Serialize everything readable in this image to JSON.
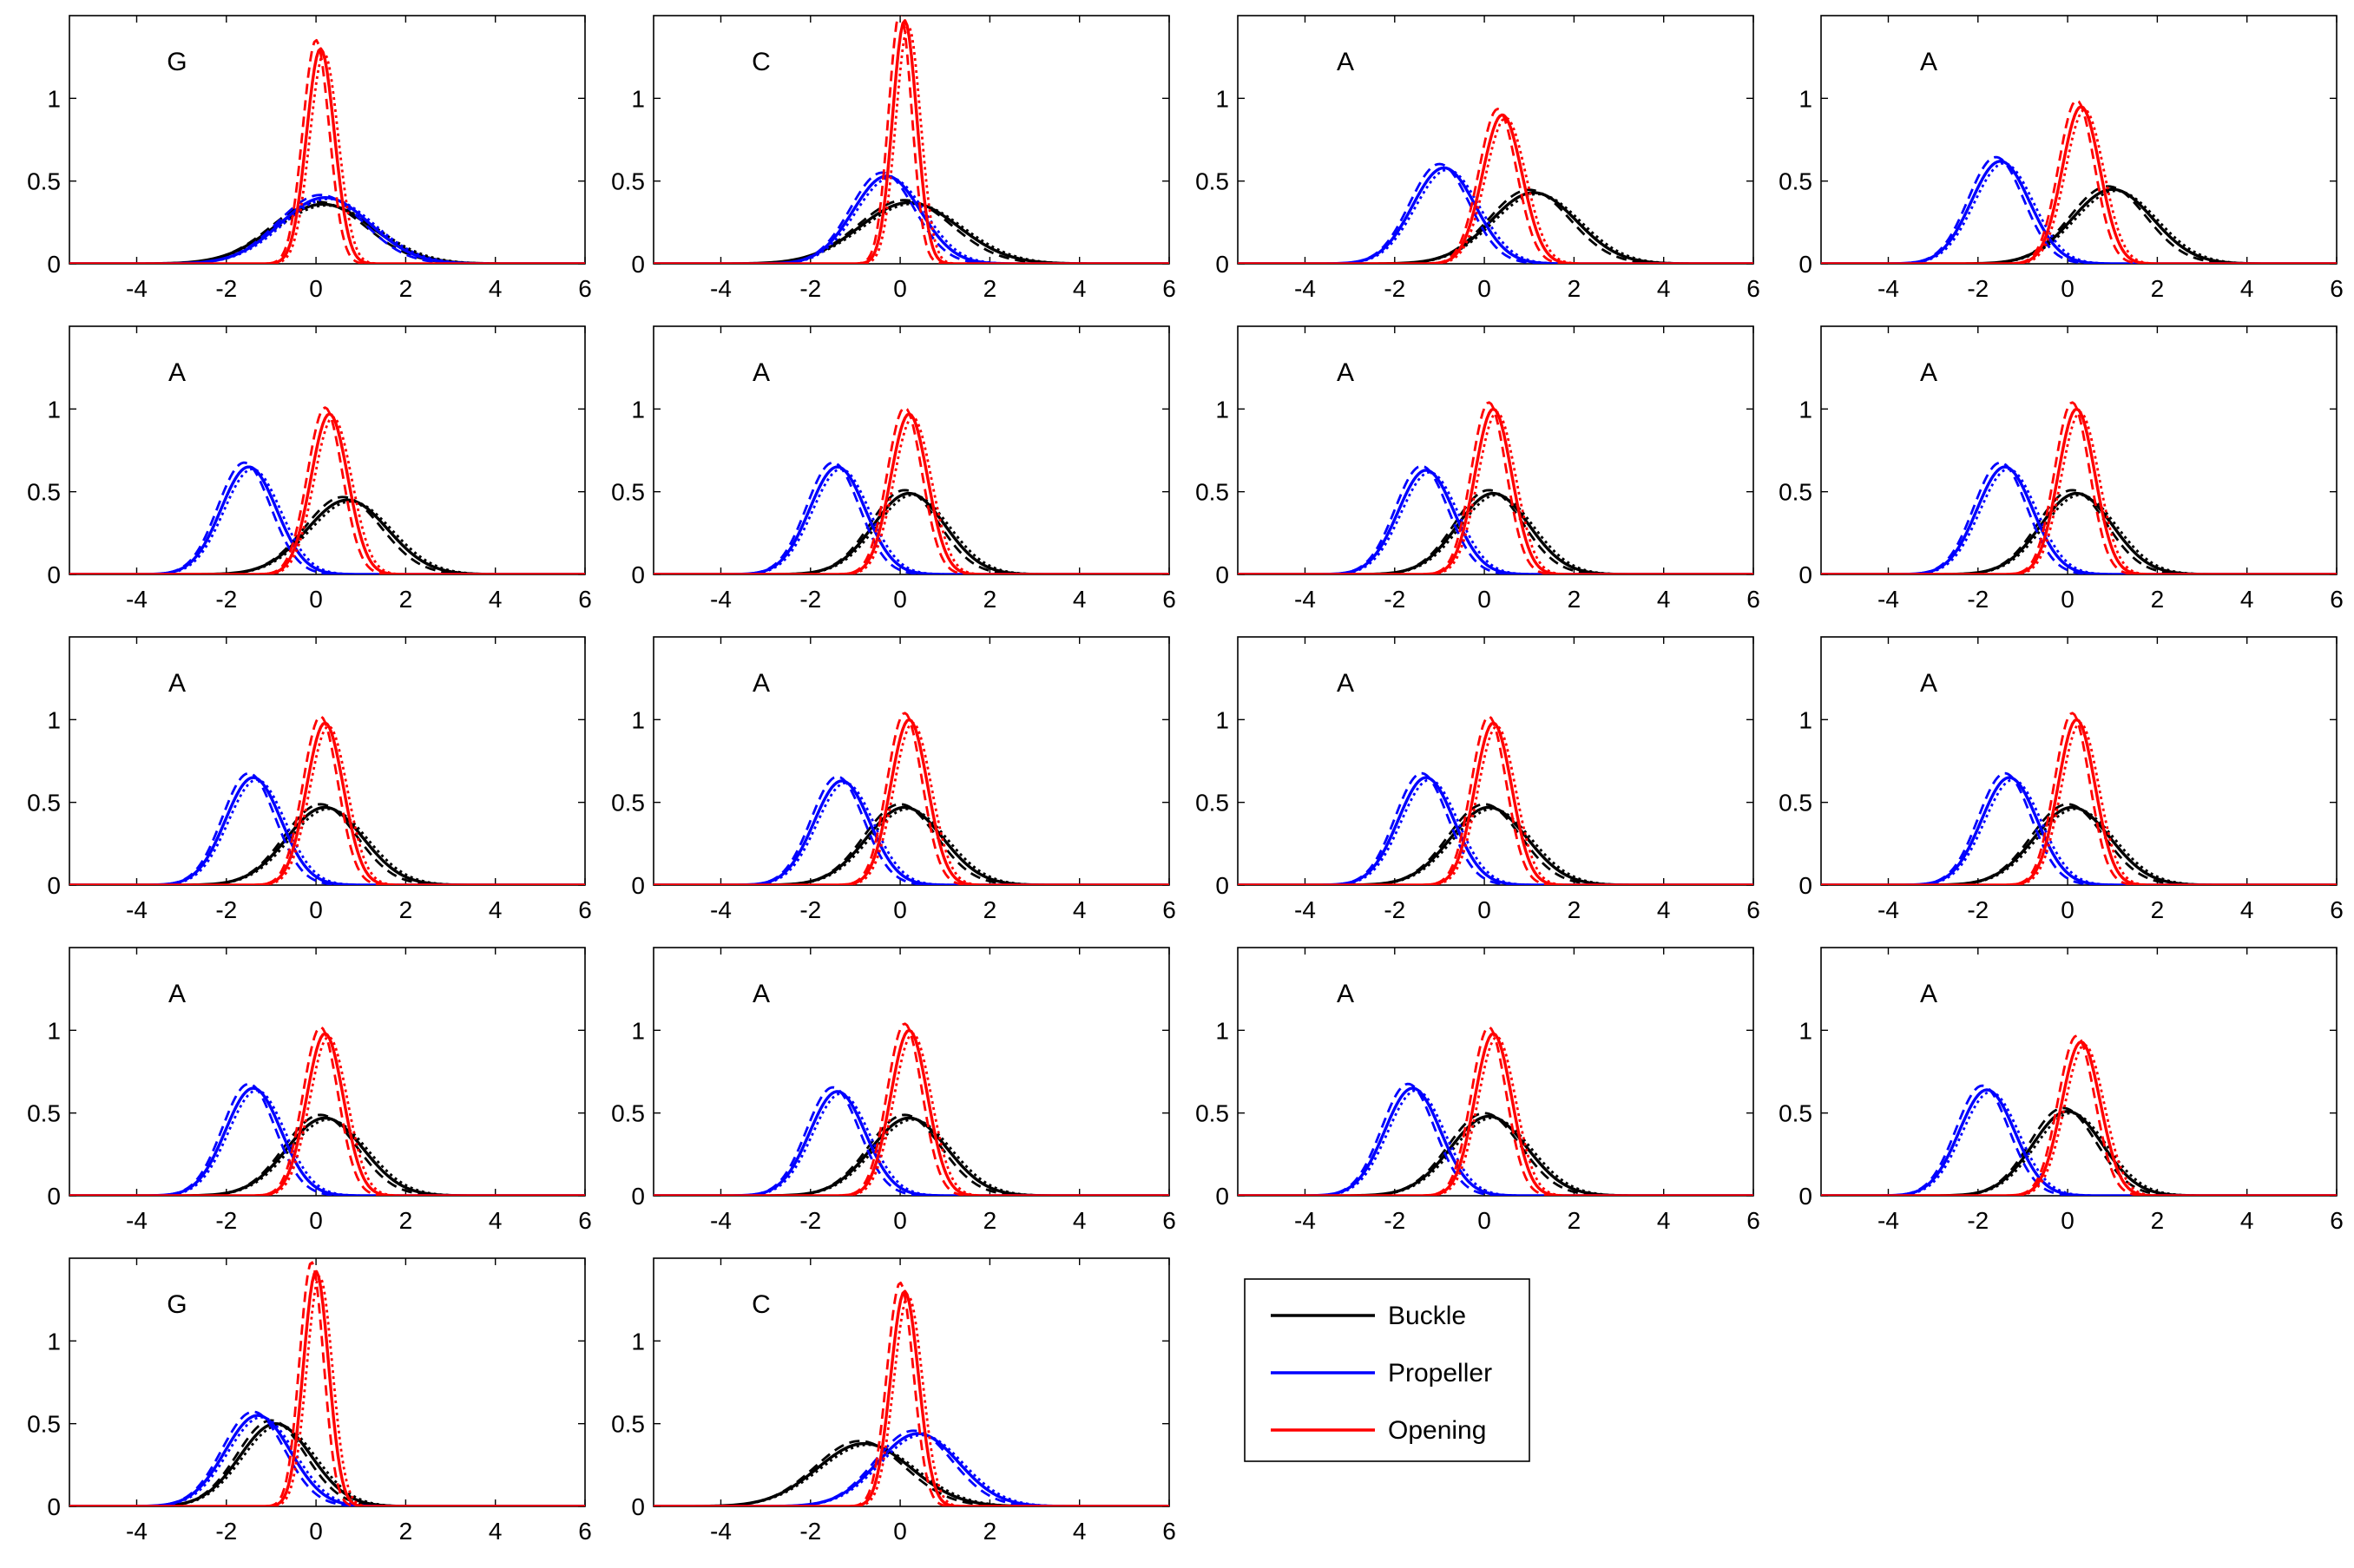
{
  "chart_data": {
    "type": "line",
    "layout": "grid 5 rows x 4 columns",
    "xlim": [
      -5.5,
      6
    ],
    "ylim": [
      0,
      1.5
    ],
    "xticks": [
      -4,
      -2,
      0,
      2,
      4,
      6
    ],
    "yticks": [
      0,
      0.5,
      1
    ],
    "ytick_labels": [
      "0",
      "0.5",
      "1"
    ],
    "legend": {
      "placement": "right of bottom row",
      "entries": [
        {
          "name": "Buckle",
          "color": "#000000"
        },
        {
          "name": "Propeller",
          "color": "#0000ff"
        },
        {
          "name": "Opening",
          "color": "#ff0000"
        }
      ]
    },
    "line_styles": [
      "solid",
      "dashed",
      "dotted"
    ],
    "panels": [
      {
        "label": "G",
        "buckle": [
          0.15,
          1.1,
          0.36
        ],
        "propeller": [
          0.2,
          1.0,
          0.4
        ],
        "opening": [
          0.1,
          0.31,
          1.3
        ]
      },
      {
        "label": "C",
        "buckle": [
          0.2,
          1.1,
          0.37
        ],
        "propeller": [
          -0.3,
          0.75,
          0.53
        ],
        "opening": [
          0.1,
          0.27,
          1.47
        ]
      },
      {
        "label": "A",
        "buckle": [
          1.1,
          0.95,
          0.43
        ],
        "propeller": [
          -0.9,
          0.7,
          0.58
        ],
        "opening": [
          0.4,
          0.44,
          0.9
        ]
      },
      {
        "label": "A",
        "buckle": [
          1.0,
          0.9,
          0.45
        ],
        "propeller": [
          -1.5,
          0.65,
          0.62
        ],
        "opening": [
          0.3,
          0.42,
          0.95
        ]
      },
      {
        "label": "A",
        "buckle": [
          0.7,
          0.9,
          0.45
        ],
        "propeller": [
          -1.5,
          0.62,
          0.65
        ],
        "opening": [
          0.3,
          0.41,
          0.97
        ]
      },
      {
        "label": "A",
        "buckle": [
          0.2,
          0.8,
          0.49
        ],
        "propeller": [
          -1.4,
          0.62,
          0.65
        ],
        "opening": [
          0.2,
          0.41,
          0.97
        ]
      },
      {
        "label": "A",
        "buckle": [
          0.2,
          0.8,
          0.49
        ],
        "propeller": [
          -1.3,
          0.62,
          0.63
        ],
        "opening": [
          0.2,
          0.41,
          1.0
        ]
      },
      {
        "label": "A",
        "buckle": [
          0.2,
          0.8,
          0.49
        ],
        "propeller": [
          -1.4,
          0.62,
          0.65
        ],
        "opening": [
          0.2,
          0.41,
          1.0
        ]
      },
      {
        "label": "A",
        "buckle": [
          0.2,
          0.85,
          0.47
        ],
        "propeller": [
          -1.4,
          0.62,
          0.65
        ],
        "opening": [
          0.2,
          0.41,
          0.98
        ]
      },
      {
        "label": "A",
        "buckle": [
          0.1,
          0.85,
          0.47
        ],
        "propeller": [
          -1.3,
          0.62,
          0.63
        ],
        "opening": [
          0.2,
          0.41,
          1.0
        ]
      },
      {
        "label": "A",
        "buckle": [
          0.1,
          0.85,
          0.47
        ],
        "propeller": [
          -1.3,
          0.62,
          0.65
        ],
        "opening": [
          0.2,
          0.41,
          0.98
        ]
      },
      {
        "label": "A",
        "buckle": [
          0.1,
          0.85,
          0.47
        ],
        "propeller": [
          -1.3,
          0.62,
          0.65
        ],
        "opening": [
          0.2,
          0.41,
          1.0
        ]
      },
      {
        "label": "A",
        "buckle": [
          0.2,
          0.85,
          0.47
        ],
        "propeller": [
          -1.4,
          0.62,
          0.65
        ],
        "opening": [
          0.2,
          0.41,
          0.98
        ]
      },
      {
        "label": "A",
        "buckle": [
          0.2,
          0.85,
          0.47
        ],
        "propeller": [
          -1.4,
          0.62,
          0.63
        ],
        "opening": [
          0.2,
          0.41,
          1.0
        ]
      },
      {
        "label": "A",
        "buckle": [
          0.1,
          0.85,
          0.48
        ],
        "propeller": [
          -1.6,
          0.62,
          0.65
        ],
        "opening": [
          0.2,
          0.41,
          0.98
        ]
      },
      {
        "label": "A",
        "buckle": [
          0.0,
          0.78,
          0.51
        ],
        "propeller": [
          -1.8,
          0.62,
          0.64
        ],
        "opening": [
          0.3,
          0.43,
          0.93
        ]
      },
      {
        "label": "G",
        "buckle": [
          -0.9,
          0.8,
          0.5
        ],
        "propeller": [
          -1.3,
          0.73,
          0.55
        ],
        "opening": [
          0.0,
          0.28,
          1.42
        ]
      },
      {
        "label": "C",
        "buckle": [
          -0.8,
          1.05,
          0.38
        ],
        "propeller": [
          0.4,
          0.9,
          0.44
        ],
        "opening": [
          0.1,
          0.31,
          1.3
        ]
      }
    ]
  }
}
